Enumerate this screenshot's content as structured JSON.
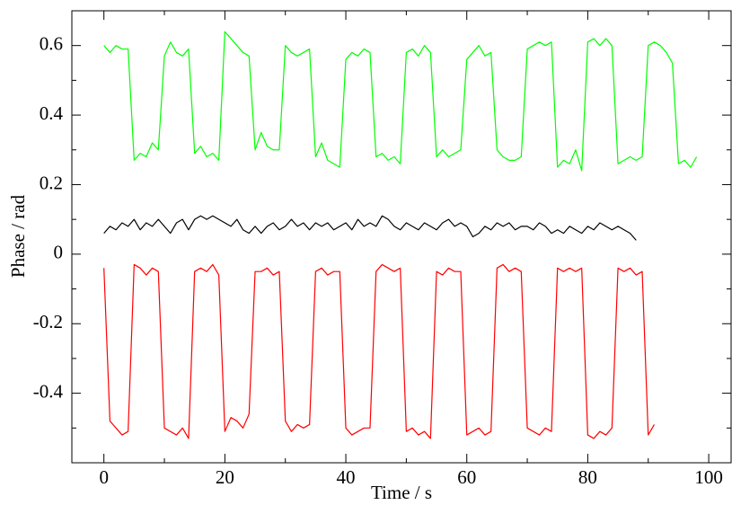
{
  "chart_data": {
    "type": "line",
    "x_label": "Time / s",
    "y_label": "Phase / rad",
    "x": [
      0,
      1,
      2,
      3,
      4,
      5,
      6,
      7,
      8,
      9,
      10,
      11,
      12,
      13,
      14,
      15,
      16,
      17,
      18,
      19,
      20,
      21,
      22,
      23,
      24,
      25,
      26,
      27,
      28,
      29,
      30,
      31,
      32,
      33,
      34,
      35,
      36,
      37,
      38,
      39,
      40,
      41,
      42,
      43,
      44,
      45,
      46,
      47,
      48,
      49,
      50,
      51,
      52,
      53,
      54,
      55,
      56,
      57,
      58,
      59,
      60,
      61,
      62,
      63,
      64,
      65,
      66,
      67,
      68,
      69,
      70,
      71,
      72,
      73,
      74,
      75,
      76,
      77,
      78,
      79,
      80,
      81,
      82,
      83,
      84,
      85,
      86,
      87,
      88,
      89,
      90,
      91,
      92,
      93,
      94,
      95,
      96,
      97,
      98
    ],
    "series": [
      {
        "color": "#00ff00",
        "values": [
          0.6,
          0.58,
          0.6,
          0.59,
          0.59,
          0.27,
          0.29,
          0.28,
          0.32,
          0.3,
          0.57,
          0.61,
          0.58,
          0.57,
          0.59,
          0.29,
          0.31,
          0.28,
          0.29,
          0.27,
          0.64,
          0.62,
          0.6,
          0.58,
          0.57,
          0.3,
          0.35,
          0.31,
          0.3,
          0.3,
          0.6,
          0.58,
          0.57,
          0.58,
          0.59,
          0.28,
          0.32,
          0.27,
          0.26,
          0.25,
          0.56,
          0.58,
          0.57,
          0.59,
          0.58,
          0.28,
          0.29,
          0.27,
          0.28,
          0.26,
          0.58,
          0.59,
          0.57,
          0.6,
          0.58,
          0.28,
          0.3,
          0.28,
          0.29,
          0.3,
          0.56,
          0.58,
          0.6,
          0.57,
          0.58,
          0.3,
          0.28,
          0.27,
          0.27,
          0.28,
          0.59,
          0.6,
          0.61,
          0.6,
          0.61,
          0.25,
          0.27,
          0.26,
          0.3,
          0.24,
          0.61,
          0.62,
          0.6,
          0.62,
          0.6,
          0.26,
          0.27,
          0.28,
          0.27,
          0.28,
          0.6,
          0.61,
          0.6,
          0.58,
          0.55,
          0.26,
          0.27,
          0.25,
          0.28
        ]
      },
      {
        "color": "#000000",
        "values": [
          0.06,
          0.08,
          0.07,
          0.09,
          0.08,
          0.1,
          0.07,
          0.09,
          0.08,
          0.1,
          0.08,
          0.06,
          0.09,
          0.1,
          0.07,
          0.1,
          0.11,
          0.1,
          0.11,
          0.1,
          0.09,
          0.08,
          0.1,
          0.07,
          0.06,
          0.08,
          0.06,
          0.08,
          0.09,
          0.07,
          0.08,
          0.1,
          0.08,
          0.09,
          0.07,
          0.09,
          0.08,
          0.09,
          0.07,
          0.08,
          0.09,
          0.07,
          0.1,
          0.08,
          0.09,
          0.08,
          0.11,
          0.1,
          0.08,
          0.07,
          0.09,
          0.08,
          0.07,
          0.09,
          0.08,
          0.07,
          0.09,
          0.1,
          0.08,
          0.09,
          0.08,
          0.05,
          0.06,
          0.08,
          0.07,
          0.09,
          0.08,
          0.09,
          0.07,
          0.08,
          0.08,
          0.07,
          0.09,
          0.08,
          0.06,
          0.07,
          0.06,
          0.08,
          0.07,
          0.06,
          0.08,
          0.07,
          0.09,
          0.08,
          0.07,
          0.08,
          0.07,
          0.06,
          0.04,
          null,
          null,
          null,
          null,
          null,
          null,
          null,
          null,
          null,
          null
        ]
      },
      {
        "color": "#ff0000",
        "values": [
          -0.04,
          -0.48,
          -0.5,
          -0.52,
          -0.51,
          -0.03,
          -0.04,
          -0.06,
          -0.04,
          -0.05,
          -0.5,
          -0.51,
          -0.52,
          -0.5,
          -0.53,
          -0.05,
          -0.04,
          -0.05,
          -0.03,
          -0.06,
          -0.51,
          -0.47,
          -0.48,
          -0.5,
          -0.46,
          -0.05,
          -0.05,
          -0.04,
          -0.06,
          -0.05,
          -0.48,
          -0.51,
          -0.49,
          -0.5,
          -0.49,
          -0.05,
          -0.04,
          -0.06,
          -0.05,
          -0.05,
          -0.5,
          -0.52,
          -0.51,
          -0.5,
          -0.5,
          -0.05,
          -0.03,
          -0.04,
          -0.05,
          -0.04,
          -0.51,
          -0.5,
          -0.52,
          -0.51,
          -0.53,
          -0.05,
          -0.06,
          -0.04,
          -0.05,
          -0.05,
          -0.52,
          -0.51,
          -0.5,
          -0.52,
          -0.51,
          -0.04,
          -0.03,
          -0.05,
          -0.04,
          -0.05,
          -0.5,
          -0.51,
          -0.52,
          -0.5,
          -0.51,
          -0.04,
          -0.05,
          -0.04,
          -0.05,
          -0.04,
          -0.52,
          -0.53,
          -0.51,
          -0.52,
          -0.5,
          -0.04,
          -0.05,
          -0.04,
          -0.06,
          -0.05,
          -0.52,
          -0.49,
          null,
          null,
          null,
          null,
          null,
          null,
          null
        ]
      }
    ],
    "xlim": [
      -5.3,
      103.7
    ],
    "xticks": [
      0,
      20,
      40,
      60,
      80,
      100
    ],
    "xminorticks": [
      10,
      30,
      50,
      70,
      90
    ],
    "ylim": [
      -0.6,
      0.7
    ],
    "yticks": [
      -0.4,
      -0.2,
      0,
      0.2,
      0.4,
      0.6
    ],
    "yminorticks": [
      -0.5,
      -0.3,
      -0.1,
      0.1,
      0.3,
      0.5
    ],
    "grid": false
  }
}
